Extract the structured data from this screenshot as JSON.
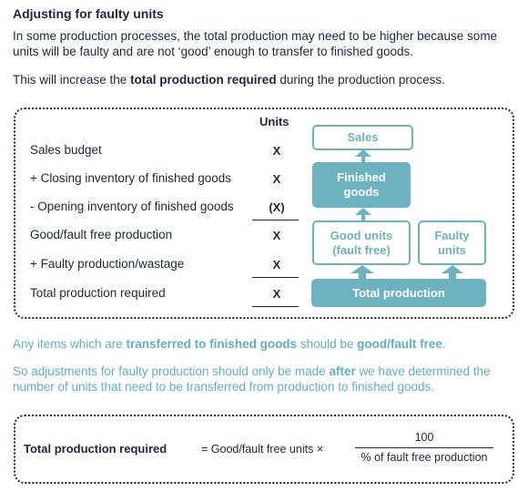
{
  "heading": "Adjusting for faulty units",
  "intro": "In some production processes, the total production may need to be higher because some units will be faulty and are not ‘good’ enough to transfer to finished goods.",
  "increase": {
    "before": "This will increase the ",
    "bold": "total production required",
    "after": " during the production process."
  },
  "table": {
    "units_header": "Units",
    "rows": [
      {
        "label": "Sales budget",
        "value": "X"
      },
      {
        "label": "+ Closing inventory of finished goods",
        "value": "X"
      },
      {
        "label": "- Opening inventory of finished goods",
        "value": "(X)"
      },
      {
        "label": "Good/fault free production",
        "value": "X"
      },
      {
        "label": "+ Faulty production/wastage",
        "value": "X"
      },
      {
        "label": "Total production required",
        "value": "X"
      }
    ]
  },
  "diagram": {
    "sales": "Sales",
    "finished_goods": "Finished goods",
    "good_units": "Good units (fault free)",
    "faulty_units": "Faulty units",
    "total_production": "Total production"
  },
  "note1": {
    "before": "Any items which are ",
    "bold1": "transferred to finished goods",
    "middle": " should be ",
    "bold2": "good/fault free",
    "after": "."
  },
  "note2": {
    "before": "So adjustments for faulty production should only be made ",
    "bold": "after",
    "after": " we have determined the number of units that need to be transferred from production to finished goods."
  },
  "formula": {
    "label": "Total production required",
    "equals": "= Good/fault free units ×",
    "numerator": "100",
    "denominator": "% of fault free production"
  },
  "colors": {
    "navy": "#1c2640",
    "teal": "#6db3bf"
  }
}
